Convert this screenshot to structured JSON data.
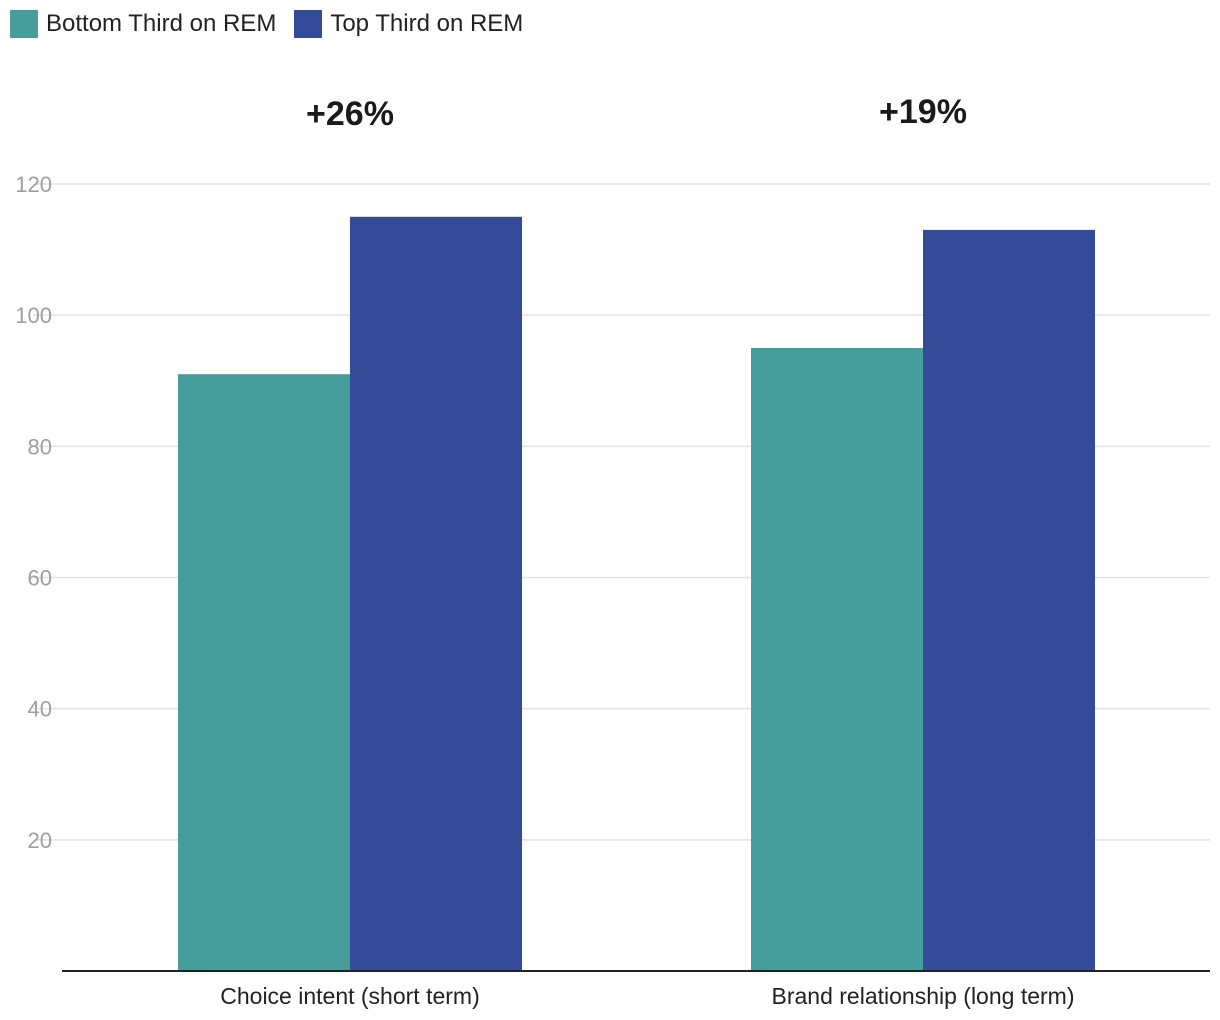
{
  "legend": {
    "items": [
      {
        "label": "Bottom Third on REM",
        "color": "#459d9c"
      },
      {
        "label": "Top Third on REM",
        "color": "#334b99"
      }
    ]
  },
  "chart_data": {
    "type": "bar",
    "categories": [
      "Choice intent (short term)",
      "Brand relationship (long term)"
    ],
    "series": [
      {
        "name": "Bottom Third on REM",
        "values": [
          91,
          95
        ],
        "color": "#459d9c"
      },
      {
        "name": "Top Third on REM",
        "values": [
          115,
          113
        ],
        "color": "#334b99"
      }
    ],
    "annotations": [
      "+26%",
      "+19%"
    ],
    "ylim": [
      0,
      120
    ],
    "yticks": [
      20,
      40,
      60,
      80,
      100,
      120
    ],
    "grid": true,
    "legend_position": "top-left",
    "xlabel": "",
    "ylabel": ""
  }
}
